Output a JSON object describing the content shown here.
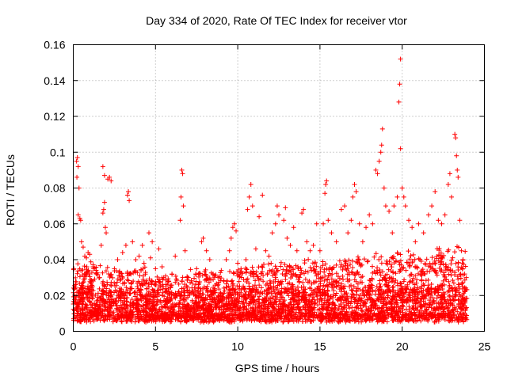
{
  "chart_data": {
    "type": "scatter",
    "title": "Day 334 of 2020, Rate Of TEC Index for receiver vtor",
    "xlabel": "GPS time / hours",
    "ylabel": "ROTI / TECUs",
    "xlim": [
      0,
      25
    ],
    "ylim": [
      0,
      0.16
    ],
    "xticks": [
      "0",
      "5",
      "10",
      "15",
      "20",
      "25"
    ],
    "yticks": [
      "0",
      "0.02",
      "0.04",
      "0.06",
      "0.08",
      "0.1",
      "0.12",
      "0.14",
      "0.16"
    ],
    "grid": true,
    "marker": "plus",
    "color": "#ff0000",
    "series": [
      {
        "points": [
          [
            0.2,
            0.095
          ],
          [
            0.25,
            0.097
          ],
          [
            0.3,
            0.092
          ],
          [
            0.22,
            0.086
          ],
          [
            0.35,
            0.08
          ],
          [
            0.3,
            0.065
          ],
          [
            0.4,
            0.063
          ],
          [
            0.45,
            0.062
          ],
          [
            0.5,
            0.05
          ],
          [
            0.6,
            0.047
          ],
          [
            0.7,
            0.042
          ],
          [
            0.8,
            0.041
          ],
          [
            0.9,
            0.044
          ],
          [
            1.0,
            0.043
          ],
          [
            1.2,
            0.036
          ],
          [
            1.4,
            0.032
          ],
          [
            1.6,
            0.03
          ],
          [
            1.7,
            0.048
          ],
          [
            1.8,
            0.066
          ],
          [
            1.85,
            0.068
          ],
          [
            1.9,
            0.072
          ],
          [
            1.95,
            0.058
          ],
          [
            2.0,
            0.055
          ],
          [
            1.8,
            0.092
          ],
          [
            1.9,
            0.087
          ],
          [
            2.1,
            0.085
          ],
          [
            2.3,
            0.084
          ],
          [
            2.2,
            0.086
          ],
          [
            2.5,
            0.035
          ],
          [
            2.7,
            0.04
          ],
          [
            3.0,
            0.044
          ],
          [
            3.2,
            0.048
          ],
          [
            3.3,
            0.076
          ],
          [
            3.35,
            0.078
          ],
          [
            3.4,
            0.073
          ],
          [
            3.6,
            0.05
          ],
          [
            3.8,
            0.04
          ],
          [
            4.0,
            0.042
          ],
          [
            4.2,
            0.048
          ],
          [
            4.3,
            0.038
          ],
          [
            4.6,
            0.055
          ],
          [
            4.8,
            0.05
          ],
          [
            4.7,
            0.041
          ],
          [
            5.0,
            0.035
          ],
          [
            5.2,
            0.046
          ],
          [
            5.4,
            0.036
          ],
          [
            5.5,
            0.03
          ],
          [
            5.8,
            0.028
          ],
          [
            6.0,
            0.032
          ],
          [
            6.2,
            0.042
          ],
          [
            6.5,
            0.062
          ],
          [
            6.55,
            0.075
          ],
          [
            6.6,
            0.09
          ],
          [
            6.65,
            0.088
          ],
          [
            6.7,
            0.07
          ],
          [
            6.8,
            0.045
          ],
          [
            7.0,
            0.03
          ],
          [
            7.5,
            0.035
          ],
          [
            7.8,
            0.05
          ],
          [
            7.9,
            0.052
          ],
          [
            8.1,
            0.045
          ],
          [
            8.3,
            0.04
          ],
          [
            8.5,
            0.032
          ],
          [
            8.8,
            0.03
          ],
          [
            9.0,
            0.034
          ],
          [
            9.3,
            0.04
          ],
          [
            9.5,
            0.045
          ],
          [
            9.6,
            0.052
          ],
          [
            9.7,
            0.058
          ],
          [
            9.8,
            0.06
          ],
          [
            9.9,
            0.056
          ],
          [
            10.0,
            0.038
          ],
          [
            10.2,
            0.035
          ],
          [
            10.5,
            0.04
          ],
          [
            10.6,
            0.068
          ],
          [
            10.7,
            0.075
          ],
          [
            10.8,
            0.082
          ],
          [
            10.9,
            0.07
          ],
          [
            11.1,
            0.046
          ],
          [
            11.3,
            0.064
          ],
          [
            11.5,
            0.076
          ],
          [
            11.7,
            0.045
          ],
          [
            11.9,
            0.042
          ],
          [
            12.1,
            0.055
          ],
          [
            12.3,
            0.06
          ],
          [
            12.4,
            0.07
          ],
          [
            12.5,
            0.065
          ],
          [
            12.8,
            0.062
          ],
          [
            12.9,
            0.069
          ],
          [
            13.0,
            0.052
          ],
          [
            13.2,
            0.048
          ],
          [
            13.4,
            0.058
          ],
          [
            13.6,
            0.045
          ],
          [
            13.9,
            0.066
          ],
          [
            14.0,
            0.068
          ],
          [
            14.2,
            0.05
          ],
          [
            14.4,
            0.045
          ],
          [
            14.6,
            0.048
          ],
          [
            14.8,
            0.06
          ],
          [
            15.0,
            0.045
          ],
          [
            15.2,
            0.06
          ],
          [
            15.3,
            0.077
          ],
          [
            15.35,
            0.082
          ],
          [
            15.4,
            0.084
          ],
          [
            15.5,
            0.062
          ],
          [
            15.7,
            0.055
          ],
          [
            16.0,
            0.05
          ],
          [
            16.3,
            0.068
          ],
          [
            16.5,
            0.07
          ],
          [
            16.7,
            0.055
          ],
          [
            16.9,
            0.062
          ],
          [
            17.0,
            0.075
          ],
          [
            17.1,
            0.082
          ],
          [
            17.2,
            0.078
          ],
          [
            17.4,
            0.06
          ],
          [
            17.6,
            0.05
          ],
          [
            17.8,
            0.058
          ],
          [
            18.0,
            0.065
          ],
          [
            18.2,
            0.06
          ],
          [
            18.4,
            0.09
          ],
          [
            18.5,
            0.088
          ],
          [
            18.6,
            0.095
          ],
          [
            18.7,
            0.1
          ],
          [
            18.75,
            0.104
          ],
          [
            18.8,
            0.113
          ],
          [
            18.9,
            0.08
          ],
          [
            19.0,
            0.07
          ],
          [
            19.2,
            0.067
          ],
          [
            19.4,
            0.055
          ],
          [
            19.5,
            0.07
          ],
          [
            19.7,
            0.075
          ],
          [
            19.8,
            0.128
          ],
          [
            19.85,
            0.138
          ],
          [
            19.9,
            0.152
          ],
          [
            19.9,
            0.102
          ],
          [
            20.0,
            0.08
          ],
          [
            20.1,
            0.075
          ],
          [
            20.2,
            0.07
          ],
          [
            20.4,
            0.062
          ],
          [
            20.6,
            0.058
          ],
          [
            20.8,
            0.05
          ],
          [
            21.0,
            0.06
          ],
          [
            21.3,
            0.055
          ],
          [
            21.6,
            0.065
          ],
          [
            21.8,
            0.07
          ],
          [
            22.0,
            0.078
          ],
          [
            22.2,
            0.062
          ],
          [
            22.4,
            0.06
          ],
          [
            22.6,
            0.065
          ],
          [
            22.8,
            0.082
          ],
          [
            22.9,
            0.088
          ],
          [
            23.0,
            0.075
          ],
          [
            23.2,
            0.11
          ],
          [
            23.25,
            0.108
          ],
          [
            23.3,
            0.098
          ],
          [
            23.35,
            0.09
          ],
          [
            23.4,
            0.086
          ],
          [
            23.5,
            0.062
          ],
          [
            23.6,
            0.045
          ],
          [
            23.7,
            0.04
          ],
          [
            23.8,
            0.032
          ],
          [
            23.9,
            0.03
          ]
        ]
      }
    ]
  }
}
